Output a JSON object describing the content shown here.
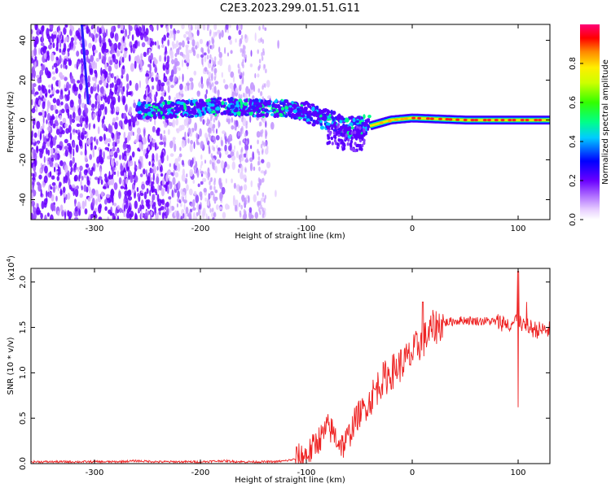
{
  "title": "C2E3.2023.299.01.51.G11",
  "chart_data": [
    {
      "type": "heatmap",
      "xlabel": "Height of straight line (km)",
      "ylabel": "Frequency (Hz)",
      "xlim": [
        -360,
        130
      ],
      "ylim": [
        -50,
        48
      ],
      "x_ticks": [
        -300,
        -200,
        -100,
        0,
        100
      ],
      "y_ticks": [
        -40,
        -20,
        0,
        20,
        40
      ],
      "colorbar": {
        "label": "Normalized spectral amplitude",
        "range": [
          0.0,
          1.0
        ],
        "ticks": [
          0.0,
          0.2,
          0.4,
          0.6,
          0.8
        ],
        "colors": [
          "#ffffff",
          "#d9b3ff",
          "#8a2be2",
          "#5500ff",
          "#0000ff",
          "#00ccff",
          "#00ff66",
          "#66ff00",
          "#ffff00",
          "#ff8800",
          "#ff0000",
          "#ff0066"
        ]
      },
      "ridge": [
        {
          "x": -240,
          "y": 5
        },
        {
          "x": -200,
          "y": 6
        },
        {
          "x": -180,
          "y": 7
        },
        {
          "x": -150,
          "y": 6
        },
        {
          "x": -120,
          "y": 6
        },
        {
          "x": -100,
          "y": 4
        },
        {
          "x": -80,
          "y": 0
        },
        {
          "x": -60,
          "y": -4
        },
        {
          "x": -40,
          "y": -3
        },
        {
          "x": -20,
          "y": 0
        },
        {
          "x": 0,
          "y": 1
        },
        {
          "x": 50,
          "y": 0
        },
        {
          "x": 100,
          "y": 0
        },
        {
          "x": 130,
          "y": 0
        }
      ],
      "vertical_streak": {
        "x": [
          -312,
          -306
        ],
        "y": [
          48,
          8
        ]
      }
    },
    {
      "type": "line",
      "xlabel": "Height of straight line (km)",
      "ylabel": "SNR (10 * v/v)",
      "y_multiplier": "(x10",
      "y_multiplier_exp": "4",
      "y_multiplier_close": ")",
      "xlim": [
        -360,
        130
      ],
      "ylim": [
        0,
        2.15
      ],
      "x_ticks": [
        -300,
        -200,
        -100,
        0,
        100
      ],
      "y_ticks": [
        "0.0",
        "0.5",
        "1.0",
        "1.5",
        "2.0"
      ],
      "line_color": "#ee2222",
      "series": [
        {
          "x": [
            -360,
            -340,
            -320,
            -300,
            -280,
            -260,
            -240,
            -220,
            -200,
            -180,
            -160,
            -140,
            -130,
            -120,
            -110,
            -100,
            -95,
            -90,
            -85,
            -80,
            -75,
            -70,
            -65,
            -60,
            -55,
            -50,
            -45,
            -40,
            -35,
            -30,
            -25,
            -20,
            -15,
            -10,
            -5,
            0,
            5,
            10,
            15,
            20,
            25,
            30,
            35,
            40,
            50,
            60,
            70,
            80,
            90,
            95,
            100,
            105,
            110,
            115,
            120,
            125,
            130
          ],
          "y": [
            0.02,
            0.02,
            0.02,
            0.02,
            0.02,
            0.03,
            0.02,
            0.02,
            0.02,
            0.03,
            0.02,
            0.02,
            0.02,
            0.03,
            0.05,
            0.1,
            0.15,
            0.25,
            0.3,
            0.4,
            0.35,
            0.25,
            0.2,
            0.3,
            0.45,
            0.55,
            0.6,
            0.7,
            0.8,
            0.9,
            0.95,
            1.0,
            1.05,
            1.1,
            1.15,
            1.2,
            1.3,
            1.35,
            1.42,
            1.5,
            1.52,
            1.55,
            1.56,
            1.57,
            1.58,
            1.57,
            1.57,
            1.56,
            1.55,
            1.55,
            1.6,
            1.5,
            1.5,
            1.48,
            1.47,
            1.47,
            1.47
          ]
        }
      ]
    }
  ]
}
